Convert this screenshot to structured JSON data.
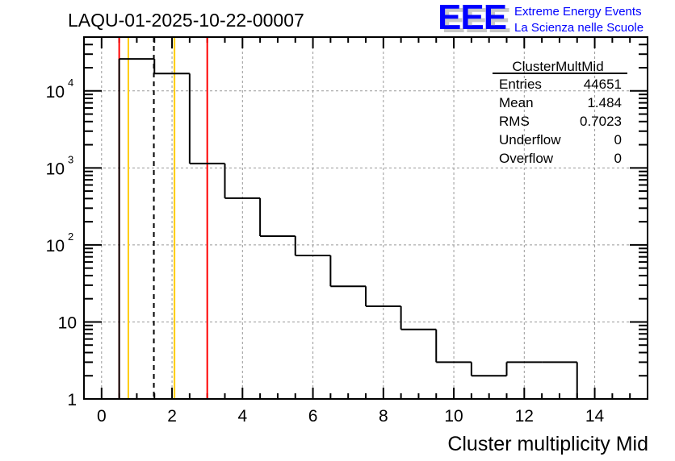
{
  "chart_data": {
    "type": "bar",
    "title": "LAQU-01-2025-10-22-00007",
    "xlabel": "Cluster multiplicity Mid",
    "ylabel": "",
    "xlim": [
      -0.5,
      15.5
    ],
    "ylim": [
      1,
      50000
    ],
    "yscale": "log",
    "grid": true,
    "bin_edges": [
      0.5,
      1.5,
      2.5,
      3.5,
      4.5,
      5.5,
      6.5,
      7.5,
      8.5,
      9.5,
      10.5,
      11.5,
      12.5,
      13.5
    ],
    "values": [
      26000,
      16800,
      1140,
      405,
      130,
      73,
      29,
      16,
      8,
      3,
      2,
      3,
      3
    ],
    "x_ticks": [
      "0",
      "2",
      "4",
      "6",
      "8",
      "10",
      "12",
      "14"
    ],
    "y_ticks": [
      {
        "value": 1,
        "base": "1",
        "exp": ""
      },
      {
        "value": 10,
        "base": "10",
        "exp": ""
      },
      {
        "value": 100,
        "base": "10",
        "exp": "2"
      },
      {
        "value": 1000,
        "base": "10",
        "exp": "3"
      },
      {
        "value": 10000,
        "base": "10",
        "exp": "4"
      }
    ],
    "markers": [
      {
        "x": 0.5,
        "color": "#ff0000",
        "style": "solid"
      },
      {
        "x": 0.76,
        "color": "#ffcc00",
        "style": "solid"
      },
      {
        "x": 1.484,
        "color": "#000000",
        "style": "dashed"
      },
      {
        "x": 2.07,
        "color": "#ffcc00",
        "style": "solid"
      },
      {
        "x": 3.0,
        "color": "#ff0000",
        "style": "solid"
      }
    ],
    "stats": {
      "name": "ClusterMultMid",
      "rows": [
        {
          "label": "Entries",
          "value": "44651"
        },
        {
          "label": "Mean",
          "value": "1.484"
        },
        {
          "label": "RMS",
          "value": "0.7023"
        },
        {
          "label": "Underflow",
          "value": "0"
        },
        {
          "label": "Overflow",
          "value": "0"
        }
      ]
    },
    "legend": "top-right"
  },
  "logo": {
    "mark": "EEE",
    "line1": "Extreme Energy Events",
    "line2": "La Scienza nelle Scuole",
    "color": "#0000ff"
  }
}
